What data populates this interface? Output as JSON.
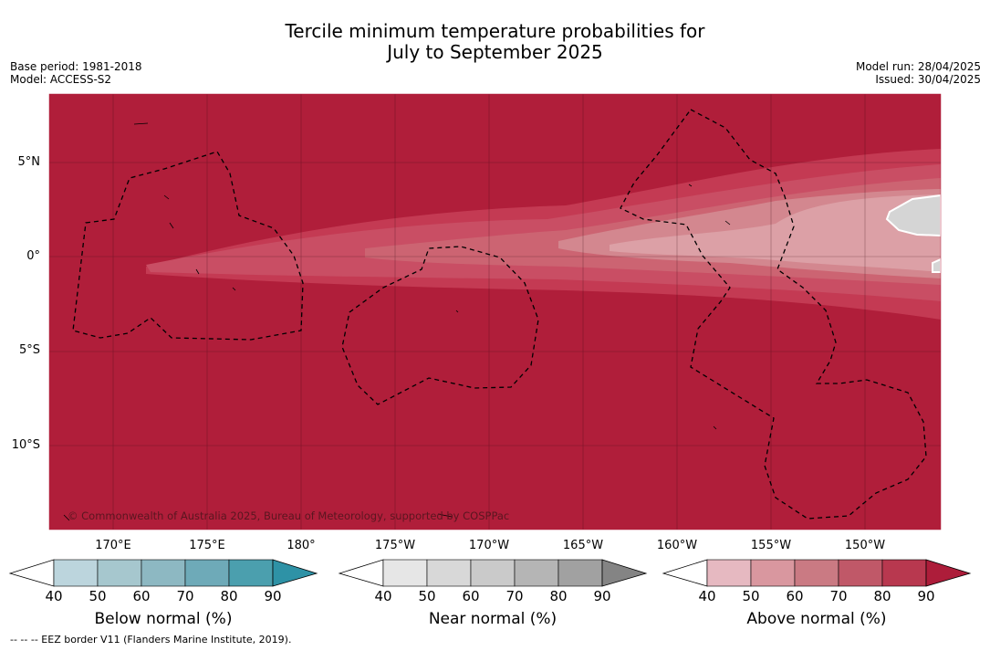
{
  "title_line1": "Tercile minimum temperature probabilities for",
  "title_line2": "July to September 2025",
  "left_meta": {
    "base_period": "Base period: 1981-2018",
    "model": "Model: ACCESS-S2"
  },
  "right_meta": {
    "model_run": "Model run: 28/04/2025",
    "issued": "Issued: 30/04/2025"
  },
  "map": {
    "background_color": "#b01e3a",
    "lat_labels": [
      "5°N",
      "0°",
      "5°S",
      "10°S"
    ],
    "lon_labels": [
      "170°E",
      "175°E",
      "180°",
      "175°W",
      "170°W",
      "165°W",
      "160°W",
      "155°W",
      "150°W"
    ],
    "copyright": "© Commonwealth of Australia 2025, Bureau of Meteorology, supported by COSPPac"
  },
  "colorbars": [
    {
      "title": "Below normal (%)",
      "ticks": [
        "40",
        "50",
        "60",
        "70",
        "80",
        "90"
      ],
      "colors": [
        "#bcd5dd",
        "#a6c7ce",
        "#8db8c2",
        "#6eaab8",
        "#4b9fae",
        "#2e92a6"
      ]
    },
    {
      "title": "Near normal (%)",
      "ticks": [
        "40",
        "50",
        "60",
        "70",
        "80",
        "90"
      ],
      "colors": [
        "#e6e6e6",
        "#d8d8d8",
        "#cacaca",
        "#b5b5b5",
        "#a1a1a1",
        "#848484"
      ]
    },
    {
      "title": "Above normal (%)",
      "ticks": [
        "40",
        "50",
        "60",
        "70",
        "80",
        "90"
      ],
      "colors": [
        "#e6b9c1",
        "#d9979f",
        "#ca7a83",
        "#c05868",
        "#b8384f",
        "#ad1d3a"
      ]
    }
  ],
  "footnote": "--  --  -- EEZ border V11 (Flanders Marine Institute, 2019)."
}
